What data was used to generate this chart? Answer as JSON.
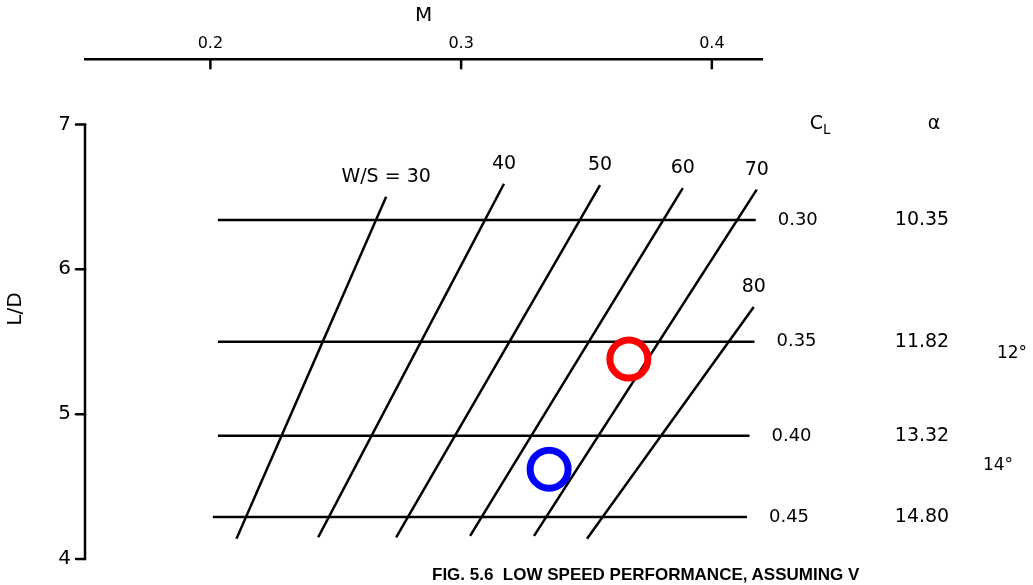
{
  "chart_data": {
    "type": "line",
    "xlabel": "M",
    "ylabel": "L/D",
    "xlim": [
      0.15,
      0.42
    ],
    "ylim": [
      4,
      7.45
    ],
    "xticks": [
      0.2,
      0.3,
      0.4
    ],
    "yticks": [
      4,
      5,
      6,
      7
    ],
    "grid": false,
    "legend": false,
    "marker": "none",
    "line_style": "solid",
    "series": [
      {
        "name": "W/S = 30",
        "color": "#000000",
        "x": [
          0.2104,
          0.2701
        ],
        "values": [
          4.14,
          6.5
        ]
      },
      {
        "name": "40",
        "color": "#000000",
        "x": [
          0.243,
          0.3171
        ],
        "values": [
          4.15,
          6.59
        ]
      },
      {
        "name": "50",
        "color": "#000000",
        "x": [
          0.2741,
          0.3554
        ],
        "values": [
          4.15,
          6.58
        ]
      },
      {
        "name": "60",
        "color": "#000000",
        "x": [
          0.3036,
          0.3884
        ],
        "values": [
          4.16,
          6.56
        ]
      },
      {
        "name": "70",
        "color": "#000000",
        "x": [
          0.3291,
          0.4179
        ],
        "values": [
          4.16,
          6.55
        ]
      },
      {
        "name": "80",
        "color": "#000000",
        "x": [
          0.3502,
          0.4167
        ],
        "values": [
          4.14,
          5.74
        ]
      },
      {
        "name": "0.30",
        "color": "#000000",
        "x": [
          0.203,
          0.4175
        ],
        "values": [
          6.34,
          6.34
        ]
      },
      {
        "name": "0.35",
        "color": "#000000",
        "x": [
          0.203,
          0.417
        ],
        "values": [
          5.5,
          5.5
        ]
      },
      {
        "name": "0.40",
        "color": "#000000",
        "x": [
          0.203,
          0.415
        ],
        "values": [
          4.85,
          4.85
        ]
      },
      {
        "name": "0.45",
        "color": "#000000",
        "x": [
          0.201,
          0.414
        ],
        "values": [
          4.29,
          4.29
        ]
      },
      {
        "type": "scatter",
        "marker": "circle",
        "color": "#ff0000",
        "x": [
          0.3669
        ],
        "values": [
          5.38
        ]
      },
      {
        "type": "scatter",
        "marker": "circle",
        "color": "#0000ff",
        "x": [
          0.3351
        ],
        "values": [
          4.62
        ]
      }
    ],
    "annotations": [
      "C$_{L}$",
      "α",
      "10.35",
      "11.82",
      "13.32",
      "14.80",
      "12°",
      "14°",
      "FIG. 5.6  LOW SPEED PERFORMANCE, ASSUMING V"
    ]
  }
}
